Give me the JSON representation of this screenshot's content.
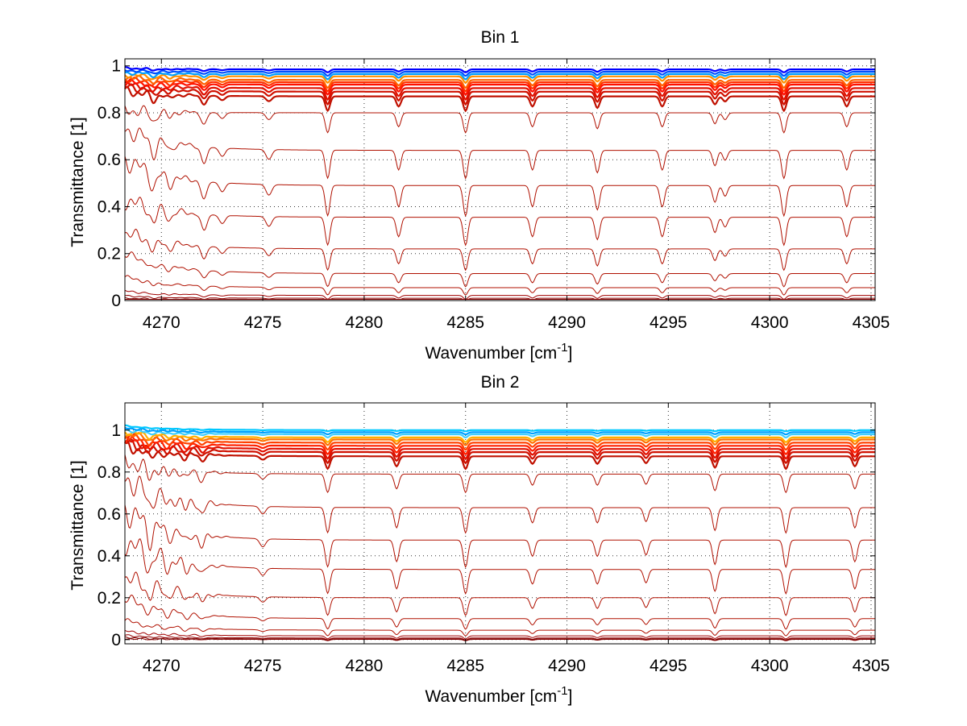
{
  "figure": {
    "background": "#ffffff"
  },
  "chart_data": [
    {
      "type": "line",
      "title": "Bin 1",
      "xlabel": "Wavenumber [cm",
      "xlabel_sup": "-1",
      "xlabel_end": "]",
      "ylabel": "Transmittance [1]",
      "xlim": [
        4268.2,
        4305.2
      ],
      "ylim": [
        0,
        1.03
      ],
      "xticks": [
        4270,
        4275,
        4280,
        4285,
        4290,
        4295,
        4300,
        4305
      ],
      "yticks": [
        0,
        0.2,
        0.4,
        0.6,
        0.8,
        1
      ],
      "ytick_labels": [
        "0",
        "0.2",
        "0.4",
        "0.6",
        "0.8",
        "1"
      ],
      "grid": "dotted",
      "absorption_lines": [
        {
          "x": 4269.6,
          "depth": 0.5,
          "width": 0.22
        },
        {
          "x": 4270.4,
          "depth": 0.3,
          "width": 0.2
        },
        {
          "x": 4272.1,
          "depth": 0.6,
          "width": 0.2
        },
        {
          "x": 4273.0,
          "depth": 0.3,
          "width": 0.2
        },
        {
          "x": 4275.3,
          "depth": 0.35,
          "width": 0.2
        },
        {
          "x": 4278.2,
          "depth": 1.0,
          "width": 0.16
        },
        {
          "x": 4281.7,
          "depth": 0.7,
          "width": 0.16
        },
        {
          "x": 4285.0,
          "depth": 1.0,
          "width": 0.16
        },
        {
          "x": 4288.3,
          "depth": 0.7,
          "width": 0.16
        },
        {
          "x": 4291.5,
          "depth": 0.8,
          "width": 0.16
        },
        {
          "x": 4294.7,
          "depth": 0.7,
          "width": 0.16
        },
        {
          "x": 4297.3,
          "depth": 0.55,
          "width": 0.16
        },
        {
          "x": 4297.8,
          "depth": 0.35,
          "width": 0.16
        },
        {
          "x": 4300.7,
          "depth": 1.0,
          "width": 0.16
        },
        {
          "x": 4303.8,
          "depth": 0.7,
          "width": 0.16
        }
      ],
      "noise_region": {
        "end": 4272.5,
        "amplitude": 0.35
      },
      "series_levels": [
        0.985,
        0.975,
        0.965,
        0.955,
        0.94,
        0.93,
        0.92,
        0.905,
        0.89,
        0.87,
        0.8,
        0.64,
        0.49,
        0.355,
        0.22,
        0.115,
        0.055,
        0.022,
        0.01,
        0.005,
        0.002
      ],
      "series_start_levels": [
        0.99,
        0.98,
        0.97,
        0.96,
        0.95,
        0.94,
        0.93,
        0.92,
        0.91,
        0.89,
        0.81,
        0.73,
        0.6,
        0.43,
        0.29,
        0.2,
        0.1,
        0.04,
        0.02,
        0.01,
        0.004
      ],
      "series_colors": [
        "#0000ff",
        "#0050ff",
        "#00a0ff",
        "#ff9000",
        "#ff6000",
        "#ff3000",
        "#ff1000",
        "#e01000",
        "#d01000",
        "#c01000",
        "#b01000",
        "#b01000",
        "#b01000",
        "#b01000",
        "#b01000",
        "#b01000",
        "#b01000",
        "#a00000",
        "#900000",
        "#800000",
        "#800000"
      ]
    },
    {
      "type": "line",
      "title": "Bin 2",
      "xlabel": "Wavenumber [cm",
      "xlabel_sup": "-1",
      "xlabel_end": "]",
      "ylabel": "Transmittance [1]",
      "xlim": [
        4268.2,
        4305.2
      ],
      "ylim": [
        -0.02,
        1.13
      ],
      "xticks": [
        4270,
        4275,
        4280,
        4285,
        4290,
        4295,
        4300,
        4305
      ],
      "yticks": [
        0,
        0.2,
        0.4,
        0.6,
        0.8,
        1
      ],
      "ytick_labels": [
        "0",
        "0.2",
        "0.4",
        "0.6",
        "0.8",
        "1"
      ],
      "grid": "dotted",
      "absorption_lines": [
        {
          "x": 4269.4,
          "depth": 0.6,
          "width": 0.22
        },
        {
          "x": 4270.3,
          "depth": 0.4,
          "width": 0.2
        },
        {
          "x": 4271.2,
          "depth": 0.4,
          "width": 0.2
        },
        {
          "x": 4272.0,
          "depth": 0.45,
          "width": 0.2
        },
        {
          "x": 4275.0,
          "depth": 0.3,
          "width": 0.2
        },
        {
          "x": 4278.2,
          "depth": 1.0,
          "width": 0.16
        },
        {
          "x": 4281.6,
          "depth": 0.8,
          "width": 0.16
        },
        {
          "x": 4285.0,
          "depth": 1.0,
          "width": 0.16
        },
        {
          "x": 4288.3,
          "depth": 0.6,
          "width": 0.16
        },
        {
          "x": 4291.5,
          "depth": 0.6,
          "width": 0.16
        },
        {
          "x": 4293.9,
          "depth": 0.55,
          "width": 0.16
        },
        {
          "x": 4297.3,
          "depth": 0.9,
          "width": 0.16
        },
        {
          "x": 4300.8,
          "depth": 1.0,
          "width": 0.16
        },
        {
          "x": 4304.2,
          "depth": 0.8,
          "width": 0.16
        }
      ],
      "noise_region": {
        "end": 4273.5,
        "amplitude": 0.55
      },
      "series_levels": [
        1.0,
        0.99,
        0.98,
        0.965,
        0.955,
        0.94,
        0.925,
        0.91,
        0.895,
        0.875,
        0.79,
        0.63,
        0.475,
        0.335,
        0.2,
        0.1,
        0.045,
        0.018,
        0.008,
        0.004,
        0.001
      ],
      "series_start_levels": [
        1.02,
        1.01,
        1.0,
        0.99,
        0.98,
        0.97,
        0.96,
        0.95,
        0.94,
        0.92,
        0.85,
        0.77,
        0.62,
        0.47,
        0.3,
        0.2,
        0.09,
        0.04,
        0.02,
        0.01,
        0.004
      ],
      "series_colors": [
        "#00c8ff",
        "#00a0ff",
        "#40d0ff",
        "#ffb000",
        "#ff7000",
        "#ff4000",
        "#ff2000",
        "#e01000",
        "#d01000",
        "#c01000",
        "#b01000",
        "#b01000",
        "#b01000",
        "#b01000",
        "#b01000",
        "#b01000",
        "#b01000",
        "#a00000",
        "#900000",
        "#800000",
        "#800000"
      ]
    }
  ]
}
